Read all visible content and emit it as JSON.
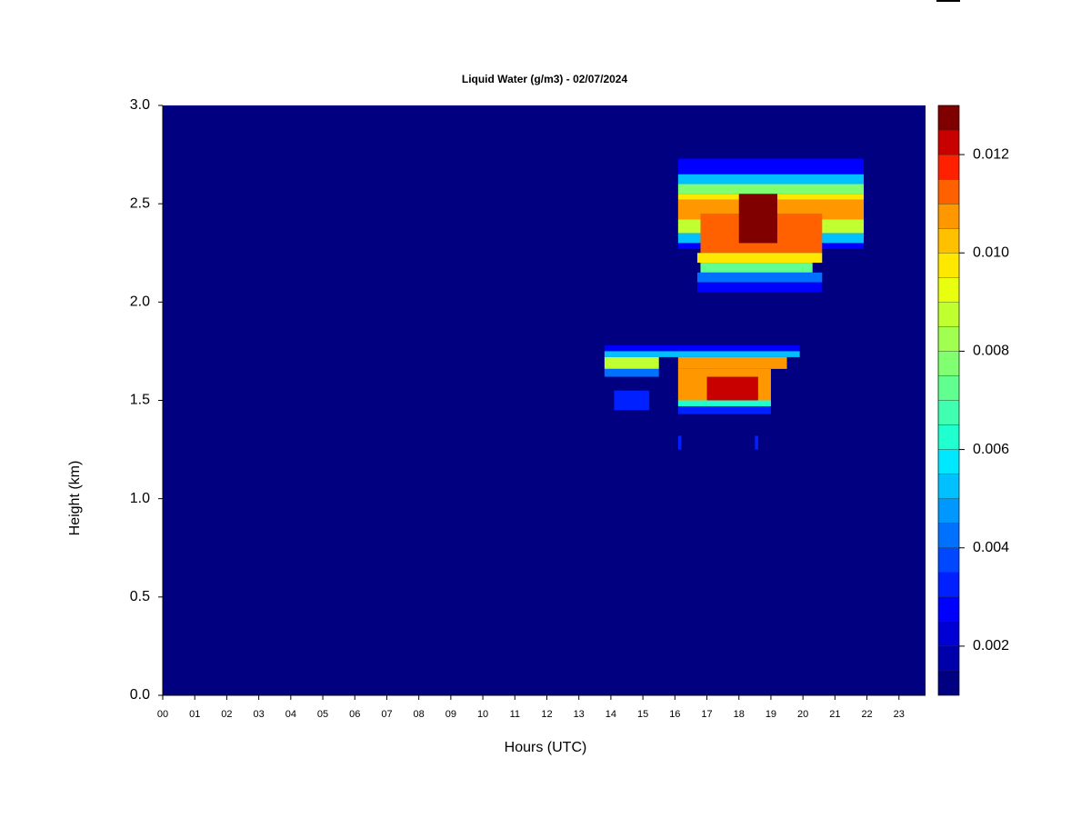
{
  "chart_data": {
    "type": "heatmap",
    "title": "Liquid Water (g/m3) - 02/07/2024",
    "xlabel": "Hours (UTC)",
    "ylabel": "Height (km)",
    "xlim": [
      0,
      23.83
    ],
    "ylim": [
      0,
      3
    ],
    "xticks": [
      {
        "value": 0,
        "label": "00"
      },
      {
        "value": 1,
        "label": "01"
      },
      {
        "value": 2,
        "label": "02"
      },
      {
        "value": 3,
        "label": "03"
      },
      {
        "value": 4,
        "label": "04"
      },
      {
        "value": 5,
        "label": "05"
      },
      {
        "value": 6,
        "label": "06"
      },
      {
        "value": 7,
        "label": "07"
      },
      {
        "value": 8,
        "label": "08"
      },
      {
        "value": 9,
        "label": "09"
      },
      {
        "value": 10,
        "label": "10"
      },
      {
        "value": 11,
        "label": "11"
      },
      {
        "value": 12,
        "label": "12"
      },
      {
        "value": 13,
        "label": "13"
      },
      {
        "value": 14,
        "label": "14"
      },
      {
        "value": 15,
        "label": "15"
      },
      {
        "value": 16,
        "label": "16"
      },
      {
        "value": 17,
        "label": "17"
      },
      {
        "value": 18,
        "label": "18"
      },
      {
        "value": 19,
        "label": "19"
      },
      {
        "value": 20,
        "label": "20"
      },
      {
        "value": 21,
        "label": "21"
      },
      {
        "value": 22,
        "label": "22"
      },
      {
        "value": 23,
        "label": "23"
      }
    ],
    "yticks": [
      {
        "value": 0,
        "label": "0.0"
      },
      {
        "value": 0.5,
        "label": "0.5"
      },
      {
        "value": 1,
        "label": "1.0"
      },
      {
        "value": 1.5,
        "label": "1.5"
      },
      {
        "value": 2,
        "label": "2.0"
      },
      {
        "value": 2.5,
        "label": "2.5"
      },
      {
        "value": 3,
        "label": "3.0"
      }
    ],
    "clim": [
      0.001,
      0.013
    ],
    "cticks": [
      0.002,
      0.004,
      0.006,
      0.008,
      {
        "value": 0.01,
        "label": "0.010"
      },
      0.012
    ],
    "colors": [
      "#000080",
      "#0000aa",
      "#0000d4",
      "#0000ff",
      "#0020ff",
      "#0048ff",
      "#0070ff",
      "#0098ff",
      "#00c0ff",
      "#00e8ff",
      "#20ffd0",
      "#40ffb0",
      "#60ff90",
      "#80ff70",
      "#a0ff50",
      "#c0ff30",
      "#e8ff10",
      "#ffe800",
      "#ffc000",
      "#ff9800",
      "#ff6000",
      "#ff2000",
      "#c80000",
      "#800000"
    ],
    "cells": [
      {
        "x": [
          0,
          23.83
        ],
        "y": [
          0,
          3
        ],
        "value": 0.001
      },
      {
        "x": [
          16.1,
          21.9
        ],
        "y": [
          2.65,
          2.73
        ],
        "value": 0.0025
      },
      {
        "x": [
          16.1,
          21.9
        ],
        "y": [
          2.6,
          2.65
        ],
        "value": 0.005
      },
      {
        "x": [
          16.1,
          21.9
        ],
        "y": [
          2.55,
          2.6
        ],
        "value": 0.0075
      },
      {
        "x": [
          16.1,
          21.9
        ],
        "y": [
          2.52,
          2.55
        ],
        "value": 0.0095
      },
      {
        "x": [
          16.1,
          21.9
        ],
        "y": [
          2.42,
          2.52
        ],
        "value": 0.011
      },
      {
        "x": [
          16.1,
          21.9
        ],
        "y": [
          2.35,
          2.42
        ],
        "value": 0.0085
      },
      {
        "x": [
          16.1,
          21.9
        ],
        "y": [
          2.3,
          2.35
        ],
        "value": 0.005
      },
      {
        "x": [
          16.1,
          21.9
        ],
        "y": [
          2.27,
          2.3
        ],
        "value": 0.0025
      },
      {
        "x": [
          16.8,
          20.6
        ],
        "y": [
          2.25,
          2.45
        ],
        "value": 0.0115
      },
      {
        "x": [
          18.0,
          19.2
        ],
        "y": [
          2.3,
          2.55
        ],
        "value": 0.0125
      },
      {
        "x": [
          16.7,
          20.6
        ],
        "y": [
          2.2,
          2.25
        ],
        "value": 0.0095
      },
      {
        "x": [
          16.8,
          20.3
        ],
        "y": [
          2.15,
          2.2
        ],
        "value": 0.007
      },
      {
        "x": [
          16.7,
          20.6
        ],
        "y": [
          2.1,
          2.15
        ],
        "value": 0.0045
      },
      {
        "x": [
          16.7,
          20.6
        ],
        "y": [
          2.05,
          2.1
        ],
        "value": 0.0025
      },
      {
        "x": [
          13.8,
          19.9
        ],
        "y": [
          1.75,
          1.78
        ],
        "value": 0.0025
      },
      {
        "x": [
          13.8,
          19.9
        ],
        "y": [
          1.72,
          1.75
        ],
        "value": 0.005
      },
      {
        "x": [
          13.8,
          15.5
        ],
        "y": [
          1.66,
          1.72
        ],
        "value": 0.0085
      },
      {
        "x": [
          16.1,
          19.5
        ],
        "y": [
          1.66,
          1.72
        ],
        "value": 0.011
      },
      {
        "x": [
          13.8,
          15.5
        ],
        "y": [
          1.62,
          1.66
        ],
        "value": 0.004
      },
      {
        "x": [
          16.1,
          19.0
        ],
        "y": [
          1.5,
          1.66
        ],
        "value": 0.0105
      },
      {
        "x": [
          17.0,
          18.6
        ],
        "y": [
          1.5,
          1.62
        ],
        "value": 0.012
      },
      {
        "x": [
          16.1,
          19.0
        ],
        "y": [
          1.47,
          1.5
        ],
        "value": 0.006
      },
      {
        "x": [
          16.1,
          19.0
        ],
        "y": [
          1.43,
          1.47
        ],
        "value": 0.003
      },
      {
        "x": [
          14.1,
          15.2
        ],
        "y": [
          1.45,
          1.55
        ],
        "value": 0.003
      },
      {
        "x": [
          16.1,
          16.2
        ],
        "y": [
          1.25,
          1.32
        ],
        "value": 0.003
      },
      {
        "x": [
          18.5,
          18.6
        ],
        "y": [
          1.25,
          1.32
        ],
        "value": 0.003
      }
    ]
  }
}
